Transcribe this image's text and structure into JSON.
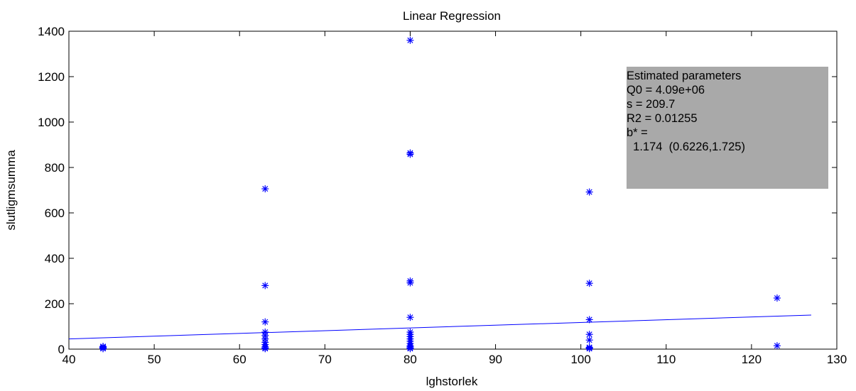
{
  "chart_data": {
    "type": "scatter",
    "title": "Linear Regression",
    "xlabel": "lghstorlek",
    "ylabel": "slutligmsumma",
    "xlim": [
      40,
      130
    ],
    "ylim": [
      0,
      1400
    ],
    "xticks": [
      40,
      50,
      60,
      70,
      80,
      90,
      100,
      110,
      120,
      130
    ],
    "yticks": [
      0,
      200,
      400,
      600,
      800,
      1000,
      1200,
      1400
    ],
    "grid": false,
    "marker": "*",
    "color": "#0000ff",
    "points": [
      [
        44,
        2
      ],
      [
        44,
        5
      ],
      [
        44,
        8
      ],
      [
        44,
        10
      ],
      [
        44,
        12
      ],
      [
        63,
        2
      ],
      [
        63,
        5
      ],
      [
        63,
        10
      ],
      [
        63,
        20
      ],
      [
        63,
        30
      ],
      [
        63,
        45
      ],
      [
        63,
        60
      ],
      [
        63,
        75
      ],
      [
        63,
        120
      ],
      [
        63,
        280
      ],
      [
        63,
        706
      ],
      [
        80,
        2
      ],
      [
        80,
        5
      ],
      [
        80,
        10
      ],
      [
        80,
        15
      ],
      [
        80,
        25
      ],
      [
        80,
        35
      ],
      [
        80,
        45
      ],
      [
        80,
        55
      ],
      [
        80,
        65
      ],
      [
        80,
        75
      ],
      [
        80,
        140
      ],
      [
        80,
        292
      ],
      [
        80,
        300
      ],
      [
        80,
        858
      ],
      [
        80,
        864
      ],
      [
        80,
        1360
      ],
      [
        101,
        2
      ],
      [
        101,
        5
      ],
      [
        101,
        8
      ],
      [
        101,
        40
      ],
      [
        101,
        65
      ],
      [
        101,
        130
      ],
      [
        101,
        290
      ],
      [
        101,
        692
      ],
      [
        123,
        15
      ],
      [
        123,
        225
      ]
    ],
    "fit_line": {
      "x": [
        40,
        127
      ],
      "y": [
        45,
        150
      ]
    }
  },
  "annotation": {
    "lines": [
      "Estimated parameters",
      "Q0 = 4.09e+06",
      "s = 209.7",
      "R2 = 0.01255",
      "b* =",
      "  1.174  (0.6226,1.725)"
    ]
  }
}
